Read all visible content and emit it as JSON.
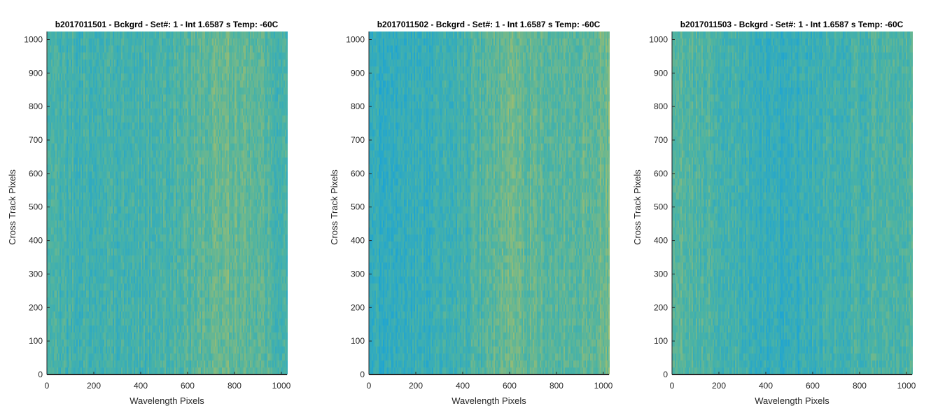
{
  "chart_data": [
    {
      "type": "heatmap",
      "title": "b2017011501 - Bckgrd - Set#: 1 - Int 1.6587 s Temp: -60C",
      "xlabel": "Wavelength Pixels",
      "ylabel": "Cross Track Pixels",
      "xlim": [
        0,
        1024
      ],
      "ylim": [
        0,
        1024
      ],
      "xticks": [
        0,
        200,
        400,
        600,
        800,
        1000
      ],
      "yticks": [
        0,
        100,
        200,
        300,
        400,
        500,
        600,
        700,
        800,
        900,
        1000
      ],
      "grid": false,
      "colormap": [
        "#1ba3d6",
        "#4cb3a3",
        "#a6be6a"
      ],
      "column_profile": [
        {
          "x": 0,
          "level": 0.42
        },
        {
          "x": 150,
          "level": 0.4
        },
        {
          "x": 300,
          "level": 0.38
        },
        {
          "x": 450,
          "level": 0.42
        },
        {
          "x": 550,
          "level": 0.47
        },
        {
          "x": 650,
          "level": 0.55
        },
        {
          "x": 750,
          "level": 0.68
        },
        {
          "x": 850,
          "level": 0.62
        },
        {
          "x": 950,
          "level": 0.5
        },
        {
          "x": 1024,
          "level": 0.45
        }
      ]
    },
    {
      "type": "heatmap",
      "title": "b2017011502 - Bckgrd - Set#: 1 - Int 1.6587 s Temp: -60C",
      "xlabel": "Wavelength Pixels",
      "ylabel": "Cross Track Pixels",
      "xlim": [
        0,
        1024
      ],
      "ylim": [
        0,
        1024
      ],
      "xticks": [
        0,
        200,
        400,
        600,
        800,
        1000
      ],
      "yticks": [
        0,
        100,
        200,
        300,
        400,
        500,
        600,
        700,
        800,
        900,
        1000
      ],
      "grid": false,
      "colormap": [
        "#1ba3d6",
        "#4cb3a3",
        "#a6be6a"
      ],
      "column_profile": [
        {
          "x": 0,
          "level": 0.25
        },
        {
          "x": 100,
          "level": 0.26
        },
        {
          "x": 250,
          "level": 0.32
        },
        {
          "x": 400,
          "level": 0.4
        },
        {
          "x": 500,
          "level": 0.55
        },
        {
          "x": 600,
          "level": 0.68
        },
        {
          "x": 700,
          "level": 0.62
        },
        {
          "x": 800,
          "level": 0.55
        },
        {
          "x": 900,
          "level": 0.6
        },
        {
          "x": 1024,
          "level": 0.72
        }
      ]
    },
    {
      "type": "heatmap",
      "title": "b2017011503 - Bckgrd - Set#: 1 - Int 1.6587 s Temp: -60C",
      "xlabel": "Wavelength Pixels",
      "ylabel": "Cross Track Pixels",
      "xlim": [
        0,
        1024
      ],
      "ylim": [
        0,
        1024
      ],
      "xticks": [
        0,
        200,
        400,
        600,
        800,
        1000
      ],
      "yticks": [
        0,
        100,
        200,
        300,
        400,
        500,
        600,
        700,
        800,
        900,
        1000
      ],
      "grid": false,
      "colormap": [
        "#1ba3d6",
        "#4cb3a3",
        "#a6be6a"
      ],
      "column_profile": [
        {
          "x": 0,
          "level": 0.55
        },
        {
          "x": 100,
          "level": 0.52
        },
        {
          "x": 250,
          "level": 0.42
        },
        {
          "x": 400,
          "level": 0.3
        },
        {
          "x": 500,
          "level": 0.28
        },
        {
          "x": 600,
          "level": 0.34
        },
        {
          "x": 750,
          "level": 0.42
        },
        {
          "x": 900,
          "level": 0.48
        },
        {
          "x": 1024,
          "level": 0.52
        }
      ]
    }
  ]
}
